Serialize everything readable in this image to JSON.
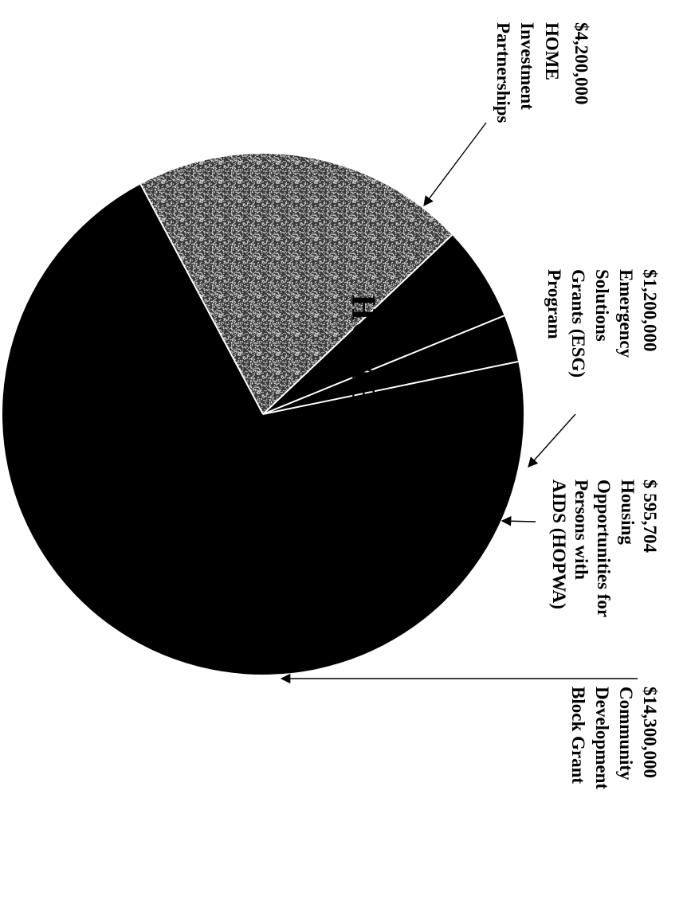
{
  "chart_data": {
    "type": "pie",
    "title": "",
    "legend": "none",
    "slices": [
      {
        "key": "home",
        "label": "HOME",
        "value": 4200000,
        "callout": [
          "$4,200,000",
          "HOME",
          "Investment",
          "Partnerships"
        ],
        "fill": "texture-gray"
      },
      {
        "key": "esg",
        "label": "",
        "value": 1200000,
        "callout": [
          "$1,200,000",
          "Emergency",
          "Solutions",
          "Grants (ESG)",
          "Program"
        ],
        "fill": "#000000"
      },
      {
        "key": "hopwa",
        "label": "",
        "value": 595704,
        "callout": [
          "$ 595,704",
          "Housing",
          "Opportunities for",
          "Persons with",
          "AIDS (HOPWA)"
        ],
        "fill": "#000000"
      },
      {
        "key": "cdbg",
        "label": "CDBG",
        "value": 14300000,
        "callout": [
          "$14,300,000",
          "Community",
          "Development",
          "Block Grant"
        ],
        "fill": "#000000"
      }
    ]
  },
  "colors": {
    "background": "#ffffff",
    "slice_dark": "#000000",
    "slice_texture_light": "#cfcfcf",
    "slice_texture_dark": "#3a3a3a",
    "separator": "#ffffff",
    "arrow": "#000000"
  }
}
